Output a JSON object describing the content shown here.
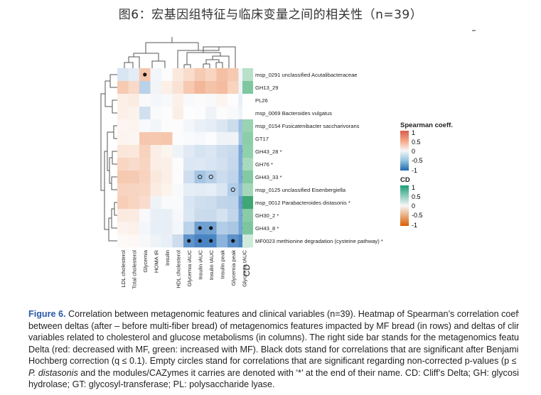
{
  "title": "图6：宏基因组特征与临床变量之间的相关性（n=39）",
  "rows": [
    {
      "label": "msp_0291 unclassified Acutalibacteraceae",
      "cd": "#b9e0c9"
    },
    {
      "label": "GH13_29",
      "cd": "#7fc7a0"
    },
    {
      "label": "PL26",
      "cd": "#ffffff"
    },
    {
      "label": "msp_0069 Bacteroides vulgatus",
      "cd": "#ffffff"
    },
    {
      "label": "msp_0154 Fusicatenibacter saccharivorans",
      "cd": "#9ad3b2"
    },
    {
      "label": "GT17",
      "cd": "#8ccdaa"
    },
    {
      "label": "GH43_28 *",
      "cd": "#8fd0ad"
    },
    {
      "label": "GH76 *",
      "cd": "#a7d9bd"
    },
    {
      "label": "GH43_33 *",
      "cd": "#83c9a3"
    },
    {
      "label": "msp_0125 unclassified Eisenbergiella",
      "cd": "#a4d7ba"
    },
    {
      "label": "msp_0012 Parabacteroides distasonis *",
      "cd": "#3fa776"
    },
    {
      "label": "GH30_2 *",
      "cd": "#8acca8"
    },
    {
      "label": "GH43_8 *",
      "cd": "#7dc59f"
    },
    {
      "label": "MF0023 methionine degradation (cysteine pathway) *",
      "cd": "#cdeadb"
    }
  ],
  "columns": [
    "LDL cholesterol",
    "Total cholesterol",
    "Glycemia",
    "HOMA IR",
    "Insulin",
    "HDL cholesterol",
    "Glycemia iAUC",
    "Insulin iAUC",
    "Insulin tAUC",
    "Insulin peak",
    "Glycemia peak",
    "Glycemia tAUC"
  ],
  "cells": [
    [
      "#d8e5f2",
      "#e4ecf5",
      "#f6c6aa",
      "#f2f5f9",
      "#fcfcfd",
      "#fbe8dc",
      "#f9dccc",
      "#f6cbb3",
      "#f8d5c1",
      "#f4bfa3",
      "#f6c9b0",
      "#f2f6fa"
    ],
    [
      "#f6cbb2",
      "#f9d9c7",
      "#b9d2ea",
      "#f3f4f6",
      "#fbefe8",
      "#f9e2d4",
      "#f6c9b0",
      "#f3b89b",
      "#f5c3a8",
      "#f4bca0",
      "#f8d3be",
      "#eef3f9"
    ],
    [
      "#fcefe7",
      "#fbece2",
      "#f9f9fa",
      "#f3f6fa",
      "#f7f8fa",
      "#fbf1ea",
      "#f8f9fb",
      "#fbfbfc",
      "#f7f9fb",
      "#fcf4ee",
      "#fcfcfc",
      "#e8eff7"
    ],
    [
      "#fbefe7",
      "#fcf2ec",
      "#d1e0ef",
      "#f9fafb",
      "#fcfcfd",
      "#fbeee6",
      "#fdfdfd",
      "#fcfcfc",
      "#eff3f8",
      "#fcfcfc",
      "#f8f9fb",
      "#eef3f8"
    ],
    [
      "#fcf5f1",
      "#fcf4ee",
      "#f8f9fb",
      "#f3f6f9",
      "#fcfcfd",
      "#fcfcfd",
      "#f3f6fa",
      "#eaf0f7",
      "#e5edf6",
      "#dbe6f2",
      "#ccdced",
      "#9dbfe0"
    ],
    [
      "#fcf5ef",
      "#fcf6f2",
      "#f6c7ae",
      "#f6c8af",
      "#f6c6ac",
      "#fcfcfd",
      "#f9fafc",
      "#f6f8fb",
      "#fcfcfd",
      "#eef3f8",
      "#eff3f8",
      "#a4c4e3"
    ],
    [
      "#fbe6da",
      "#fbe7dc",
      "#f7d2bd",
      "#fbeee6",
      "#fcf4ef",
      "#eef3f8",
      "#e0e9f4",
      "#d6e3f1",
      "#dae6f2",
      "#cfdeee",
      "#c9daed",
      "#7ba9d5"
    ],
    [
      "#f8d6c3",
      "#f9dbcb",
      "#f8d5c1",
      "#fbeee6",
      "#fbf0e9",
      "#fcfcfd",
      "#dce7f3",
      "#dde8f3",
      "#d9e5f2",
      "#d2e0ef",
      "#c6d8ec",
      "#7ca9d5"
    ],
    [
      "#f6c9b1",
      "#f6cbb3",
      "#f8d4c0",
      "#fbe8dd",
      "#fbefe8",
      "#fcfcfd",
      "#cfdeef",
      "#a5c5e3",
      "#b5d0e8",
      "#cbdcee",
      "#c0d5eb",
      "#7aa8d5"
    ],
    [
      "#f8d4c0",
      "#f8d5c2",
      "#f8d7c4",
      "#fbece3",
      "#fcf3ed",
      "#f8f9fb",
      "#e5edf6",
      "#e3ebf5",
      "#e5edf6",
      "#d9e5f2",
      "#b1cde7",
      "#8eb5dc"
    ],
    [
      "#f7cfb9",
      "#f8d5c1",
      "#f9dccd",
      "#eef3f8",
      "#f9fafc",
      "#f9fafc",
      "#d9e5f2",
      "#d0dfef",
      "#cedded",
      "#c1d5ea",
      "#bdd3ea",
      "#6a9ccf"
    ],
    [
      "#fbeae0",
      "#fbebe2",
      "#f8f9fb",
      "#e9eff7",
      "#e8eff7",
      "#f6f8fb",
      "#dae6f2",
      "#cadbec",
      "#c9daec",
      "#d5e2f0",
      "#c1d6ea",
      "#78a6d4"
    ],
    [
      "#fcf3ee",
      "#fcf1ea",
      "#f3f6fa",
      "#e6eef6",
      "#e7eef6",
      "#f3f6fa",
      "#bad3ea",
      "#6e9fd1",
      "#72a2d2",
      "#b2cde7",
      "#a9c7e4",
      "#78a6d4"
    ],
    [
      "#fdf9f6",
      "#fdf8f5",
      "#f7f8fa",
      "#eef3f8",
      "#e8eff7",
      "#cddded",
      "#6194cb",
      "#4a84c3",
      "#4a85c3",
      "#8cb3dc",
      "#5d92ca",
      "#4a84c3"
    ]
  ],
  "dots": [
    [
      0,
      2
    ],
    [
      6,
      11
    ],
    [
      7,
      11
    ],
    [
      8,
      11
    ],
    [
      10,
      11
    ],
    [
      11,
      11
    ],
    [
      12,
      7
    ],
    [
      12,
      8
    ],
    [
      12,
      11
    ],
    [
      13,
      6
    ],
    [
      13,
      7
    ],
    [
      13,
      8
    ],
    [
      13,
      10
    ],
    [
      13,
      11
    ]
  ],
  "circles": [
    [
      8,
      7
    ],
    [
      8,
      8
    ],
    [
      9,
      10
    ]
  ],
  "cd_label": "CD",
  "legend": {
    "spearman_title": "Spearman coeff.",
    "spearman_ticks": [
      "1",
      "0.5",
      "0",
      "-0.5",
      "-1"
    ],
    "cd_title": "CD",
    "cd_ticks": [
      "1",
      "0.5",
      "0",
      "-0.5",
      "-1"
    ]
  },
  "caption": {
    "label": "Figure 6.",
    "line1": " Correlation between metagenomic features and clinical variables (n=39). Heatmap of Spearman’s correlation coefficie",
    "line2": "between deltas (after – before multi-fiber bread) of metagenomics features impacted by MF bread (in rows) and deltas of clinic",
    "line3": "variables related to cholesterol and glucose metabolisms (in columns). The right side bar stands for the metagenomics features Clif",
    "line4": "Delta (red: decreased with MF, green: increased with MF). Black dots stand for correlations that are significant after Benjamir",
    "line5": "Hochberg correction (q ≤ 0.1). Empty circles stand for correlations that are significant regarding non-corrected p-values (p ≤ 0.0",
    "line6_it": "P. distasonis",
    "line6": " and the modules/CAZymes it carries are denoted with ‘*’ at the end of their name. CD: Cliff’s Delta; GH: glycosi",
    "line7": "hydrolase; GT: glycosyl-transferase; PL: polysaccharide lyase."
  },
  "colors": {
    "positive": "#d6604d",
    "negative": "#2166ac",
    "cd_positive": "#1b9e77",
    "cd_negative": "#d95f02",
    "caption_label": "#2a5aa8"
  }
}
